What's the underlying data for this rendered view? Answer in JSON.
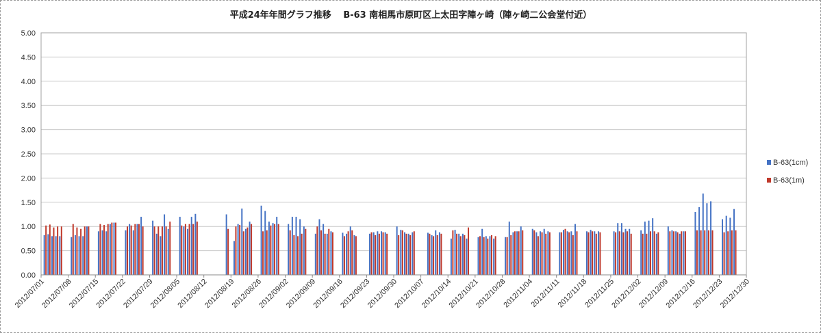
{
  "chart_data": {
    "type": "bar",
    "title": "平成24年年間グラフ推移　 B-63 南相馬市原町区上太田字陣ヶ崎（陣ヶ崎二公会堂付近）",
    "xlabel": "",
    "ylabel": "",
    "ylim": [
      0,
      5
    ],
    "yticks": [
      "0.00",
      "0.50",
      "1.00",
      "1.50",
      "2.00",
      "2.50",
      "3.00",
      "3.50",
      "4.00",
      "4.50",
      "5.00"
    ],
    "grid": true,
    "legend_position": "right",
    "x_range": [
      "2012/07/01",
      "2012/12/30"
    ],
    "x_tick_labels": [
      "2012/07/01",
      "2012/07/08",
      "2012/07/15",
      "2012/07/22",
      "2012/07/29",
      "2012/08/05",
      "2012/08/12",
      "2012/08/19",
      "2012/08/26",
      "2012/09/02",
      "2012/09/09",
      "2012/09/16",
      "2012/09/23",
      "2012/09/30",
      "2012/10/07",
      "2012/10/14",
      "2012/10/21",
      "2012/10/28",
      "2012/11/04",
      "2012/11/11",
      "2012/11/18",
      "2012/11/25",
      "2012/12/02",
      "2012/12/09",
      "2012/12/16",
      "2012/12/23",
      "2012/12/30"
    ],
    "series": [
      {
        "name": "B-63(1cm)",
        "color": "#4472c4",
        "values": [
          [
            "2012/07/02",
            0.82
          ],
          [
            "2012/07/03",
            0.84
          ],
          [
            "2012/07/04",
            0.8
          ],
          [
            "2012/07/05",
            0.8
          ],
          [
            "2012/07/06",
            0.8
          ],
          [
            "2012/07/09",
            0.78
          ],
          [
            "2012/07/10",
            0.82
          ],
          [
            "2012/07/11",
            0.8
          ],
          [
            "2012/07/12",
            0.8
          ],
          [
            "2012/07/13",
            1.0
          ],
          [
            "2012/07/16",
            0.9
          ],
          [
            "2012/07/17",
            0.92
          ],
          [
            "2012/07/18",
            0.9
          ],
          [
            "2012/07/19",
            1.05
          ],
          [
            "2012/07/20",
            1.08
          ],
          [
            "2012/07/23",
            0.92
          ],
          [
            "2012/07/24",
            1.05
          ],
          [
            "2012/07/25",
            0.92
          ],
          [
            "2012/07/26",
            1.05
          ],
          [
            "2012/07/27",
            1.2
          ],
          [
            "2012/07/30",
            1.12
          ],
          [
            "2012/07/31",
            0.85
          ],
          [
            "2012/08/01",
            0.8
          ],
          [
            "2012/08/02",
            1.25
          ],
          [
            "2012/08/03",
            0.95
          ],
          [
            "2012/08/06",
            1.2
          ],
          [
            "2012/08/07",
            1.0
          ],
          [
            "2012/08/08",
            0.95
          ],
          [
            "2012/08/09",
            1.2
          ],
          [
            "2012/08/10",
            1.26
          ],
          [
            "2012/08/18",
            1.25
          ],
          [
            "2012/08/20",
            0.7
          ],
          [
            "2012/08/21",
            1.05
          ],
          [
            "2012/08/22",
            1.37
          ],
          [
            "2012/08/23",
            0.95
          ],
          [
            "2012/08/24",
            1.1
          ],
          [
            "2012/08/27",
            1.43
          ],
          [
            "2012/08/28",
            1.32
          ],
          [
            "2012/08/29",
            1.1
          ],
          [
            "2012/08/30",
            1.07
          ],
          [
            "2012/08/31",
            1.2
          ],
          [
            "2012/09/03",
            1.05
          ],
          [
            "2012/09/04",
            1.2
          ],
          [
            "2012/09/05",
            1.2
          ],
          [
            "2012/09/06",
            1.15
          ],
          [
            "2012/09/07",
            1.0
          ],
          [
            "2012/09/10",
            0.85
          ],
          [
            "2012/09/11",
            1.15
          ],
          [
            "2012/09/12",
            1.05
          ],
          [
            "2012/09/13",
            0.85
          ],
          [
            "2012/09/14",
            0.9
          ],
          [
            "2012/09/17",
            0.87
          ],
          [
            "2012/09/18",
            0.85
          ],
          [
            "2012/09/19",
            1.0
          ],
          [
            "2012/09/20",
            0.82
          ],
          [
            "2012/09/24",
            0.85
          ],
          [
            "2012/09/25",
            0.88
          ],
          [
            "2012/09/26",
            0.9
          ],
          [
            "2012/09/27",
            0.9
          ],
          [
            "2012/09/28",
            0.88
          ],
          [
            "2012/10/01",
            1.0
          ],
          [
            "2012/10/02",
            0.93
          ],
          [
            "2012/10/03",
            0.88
          ],
          [
            "2012/10/04",
            0.85
          ],
          [
            "2012/10/05",
            0.88
          ],
          [
            "2012/10/09",
            0.87
          ],
          [
            "2012/10/10",
            0.82
          ],
          [
            "2012/10/11",
            0.92
          ],
          [
            "2012/10/12",
            0.88
          ],
          [
            "2012/10/15",
            0.75
          ],
          [
            "2012/10/16",
            0.93
          ],
          [
            "2012/10/17",
            0.85
          ],
          [
            "2012/10/18",
            0.85
          ],
          [
            "2012/10/19",
            0.75
          ],
          [
            "2012/10/22",
            0.78
          ],
          [
            "2012/10/23",
            0.95
          ],
          [
            "2012/10/24",
            0.8
          ],
          [
            "2012/10/25",
            0.8
          ],
          [
            "2012/10/26",
            0.75
          ],
          [
            "2012/10/29",
            0.78
          ],
          [
            "2012/10/30",
            1.1
          ],
          [
            "2012/10/31",
            0.88
          ],
          [
            "2012/11/01",
            0.9
          ],
          [
            "2012/11/02",
            1.0
          ],
          [
            "2012/11/05",
            0.95
          ],
          [
            "2012/11/06",
            0.88
          ],
          [
            "2012/11/07",
            0.9
          ],
          [
            "2012/11/08",
            0.95
          ],
          [
            "2012/11/09",
            0.9
          ],
          [
            "2012/11/12",
            0.88
          ],
          [
            "2012/11/13",
            0.93
          ],
          [
            "2012/11/14",
            0.9
          ],
          [
            "2012/11/15",
            0.9
          ],
          [
            "2012/11/16",
            1.05
          ],
          [
            "2012/11/19",
            0.9
          ],
          [
            "2012/11/20",
            0.93
          ],
          [
            "2012/11/21",
            0.9
          ],
          [
            "2012/11/22",
            0.9
          ],
          [
            "2012/11/26",
            0.9
          ],
          [
            "2012/11/27",
            1.07
          ],
          [
            "2012/11/28",
            1.07
          ],
          [
            "2012/11/29",
            0.95
          ],
          [
            "2012/11/30",
            0.95
          ],
          [
            "2012/12/03",
            0.92
          ],
          [
            "2012/12/04",
            1.1
          ],
          [
            "2012/12/05",
            1.12
          ],
          [
            "2012/12/06",
            1.17
          ],
          [
            "2012/12/07",
            0.85
          ],
          [
            "2012/12/10",
            1.0
          ],
          [
            "2012/12/11",
            0.92
          ],
          [
            "2012/12/12",
            0.9
          ],
          [
            "2012/12/13",
            0.85
          ],
          [
            "2012/12/14",
            0.9
          ],
          [
            "2012/12/17",
            1.3
          ],
          [
            "2012/12/18",
            1.4
          ],
          [
            "2012/12/19",
            1.68
          ],
          [
            "2012/12/20",
            1.48
          ],
          [
            "2012/12/21",
            1.52
          ],
          [
            "2012/12/24",
            1.15
          ],
          [
            "2012/12/25",
            1.22
          ],
          [
            "2012/12/26",
            1.18
          ],
          [
            "2012/12/27",
            1.36
          ]
        ]
      },
      {
        "name": "B-63(1m)",
        "color": "#c0392b",
        "values": [
          [
            "2012/07/02",
            1.02
          ],
          [
            "2012/07/03",
            1.04
          ],
          [
            "2012/07/04",
            0.98
          ],
          [
            "2012/07/05",
            1.0
          ],
          [
            "2012/07/06",
            1.0
          ],
          [
            "2012/07/09",
            1.05
          ],
          [
            "2012/07/10",
            0.98
          ],
          [
            "2012/07/11",
            0.95
          ],
          [
            "2012/07/12",
            1.0
          ],
          [
            "2012/07/13",
            1.0
          ],
          [
            "2012/07/16",
            1.05
          ],
          [
            "2012/07/17",
            1.03
          ],
          [
            "2012/07/18",
            1.05
          ],
          [
            "2012/07/19",
            1.08
          ],
          [
            "2012/07/20",
            1.08
          ],
          [
            "2012/07/23",
            1.0
          ],
          [
            "2012/07/24",
            1.02
          ],
          [
            "2012/07/25",
            1.05
          ],
          [
            "2012/07/26",
            1.05
          ],
          [
            "2012/07/27",
            1.0
          ],
          [
            "2012/07/30",
            1.0
          ],
          [
            "2012/07/31",
            1.0
          ],
          [
            "2012/08/01",
            1.0
          ],
          [
            "2012/08/02",
            1.0
          ],
          [
            "2012/08/03",
            1.1
          ],
          [
            "2012/08/06",
            1.02
          ],
          [
            "2012/08/07",
            1.05
          ],
          [
            "2012/08/08",
            1.05
          ],
          [
            "2012/08/09",
            1.05
          ],
          [
            "2012/08/10",
            1.1
          ],
          [
            "2012/08/18",
            0.95
          ],
          [
            "2012/08/20",
            1.0
          ],
          [
            "2012/08/21",
            1.03
          ],
          [
            "2012/08/22",
            0.9
          ],
          [
            "2012/08/23",
            0.98
          ],
          [
            "2012/08/24",
            1.05
          ],
          [
            "2012/08/27",
            0.9
          ],
          [
            "2012/08/28",
            0.92
          ],
          [
            "2012/08/29",
            1.02
          ],
          [
            "2012/08/30",
            1.05
          ],
          [
            "2012/08/31",
            1.05
          ],
          [
            "2012/09/03",
            0.92
          ],
          [
            "2012/09/04",
            0.82
          ],
          [
            "2012/09/05",
            0.8
          ],
          [
            "2012/09/06",
            0.85
          ],
          [
            "2012/09/07",
            0.95
          ],
          [
            "2012/09/10",
            1.0
          ],
          [
            "2012/09/11",
            0.92
          ],
          [
            "2012/09/12",
            0.85
          ],
          [
            "2012/09/13",
            0.95
          ],
          [
            "2012/09/14",
            0.88
          ],
          [
            "2012/09/17",
            0.8
          ],
          [
            "2012/09/18",
            0.9
          ],
          [
            "2012/09/19",
            0.92
          ],
          [
            "2012/09/20",
            0.8
          ],
          [
            "2012/09/24",
            0.88
          ],
          [
            "2012/09/25",
            0.82
          ],
          [
            "2012/09/26",
            0.85
          ],
          [
            "2012/09/27",
            0.88
          ],
          [
            "2012/09/28",
            0.85
          ],
          [
            "2012/10/01",
            0.82
          ],
          [
            "2012/10/02",
            0.92
          ],
          [
            "2012/10/03",
            0.85
          ],
          [
            "2012/10/04",
            0.82
          ],
          [
            "2012/10/05",
            0.9
          ],
          [
            "2012/10/09",
            0.85
          ],
          [
            "2012/10/10",
            0.8
          ],
          [
            "2012/10/11",
            0.82
          ],
          [
            "2012/10/12",
            0.85
          ],
          [
            "2012/10/15",
            0.92
          ],
          [
            "2012/10/16",
            0.85
          ],
          [
            "2012/10/17",
            0.8
          ],
          [
            "2012/10/18",
            0.82
          ],
          [
            "2012/10/19",
            0.98
          ],
          [
            "2012/10/22",
            0.8
          ],
          [
            "2012/10/23",
            0.78
          ],
          [
            "2012/10/24",
            0.75
          ],
          [
            "2012/10/25",
            0.82
          ],
          [
            "2012/10/26",
            0.8
          ],
          [
            "2012/10/29",
            0.78
          ],
          [
            "2012/10/30",
            0.82
          ],
          [
            "2012/10/31",
            0.9
          ],
          [
            "2012/11/01",
            0.9
          ],
          [
            "2012/11/02",
            0.92
          ],
          [
            "2012/11/05",
            0.92
          ],
          [
            "2012/11/06",
            0.8
          ],
          [
            "2012/11/07",
            0.88
          ],
          [
            "2012/11/08",
            0.85
          ],
          [
            "2012/11/09",
            0.88
          ],
          [
            "2012/11/12",
            0.88
          ],
          [
            "2012/11/13",
            0.95
          ],
          [
            "2012/11/14",
            0.88
          ],
          [
            "2012/11/15",
            0.82
          ],
          [
            "2012/11/16",
            0.9
          ],
          [
            "2012/11/19",
            0.88
          ],
          [
            "2012/11/20",
            0.9
          ],
          [
            "2012/11/21",
            0.85
          ],
          [
            "2012/11/22",
            0.88
          ],
          [
            "2012/11/26",
            0.88
          ],
          [
            "2012/11/27",
            0.9
          ],
          [
            "2012/11/28",
            0.88
          ],
          [
            "2012/11/29",
            0.9
          ],
          [
            "2012/11/30",
            0.85
          ],
          [
            "2012/12/03",
            0.85
          ],
          [
            "2012/12/04",
            0.85
          ],
          [
            "2012/12/05",
            0.9
          ],
          [
            "2012/12/06",
            0.9
          ],
          [
            "2012/12/07",
            0.88
          ],
          [
            "2012/12/10",
            0.9
          ],
          [
            "2012/12/11",
            0.9
          ],
          [
            "2012/12/12",
            0.88
          ],
          [
            "2012/12/13",
            0.9
          ],
          [
            "2012/12/14",
            0.9
          ],
          [
            "2012/12/17",
            0.92
          ],
          [
            "2012/12/18",
            0.92
          ],
          [
            "2012/12/19",
            0.92
          ],
          [
            "2012/12/20",
            0.92
          ],
          [
            "2012/12/21",
            0.92
          ],
          [
            "2012/12/24",
            0.88
          ],
          [
            "2012/12/25",
            0.9
          ],
          [
            "2012/12/26",
            0.92
          ],
          [
            "2012/12/27",
            0.92
          ]
        ]
      }
    ]
  }
}
